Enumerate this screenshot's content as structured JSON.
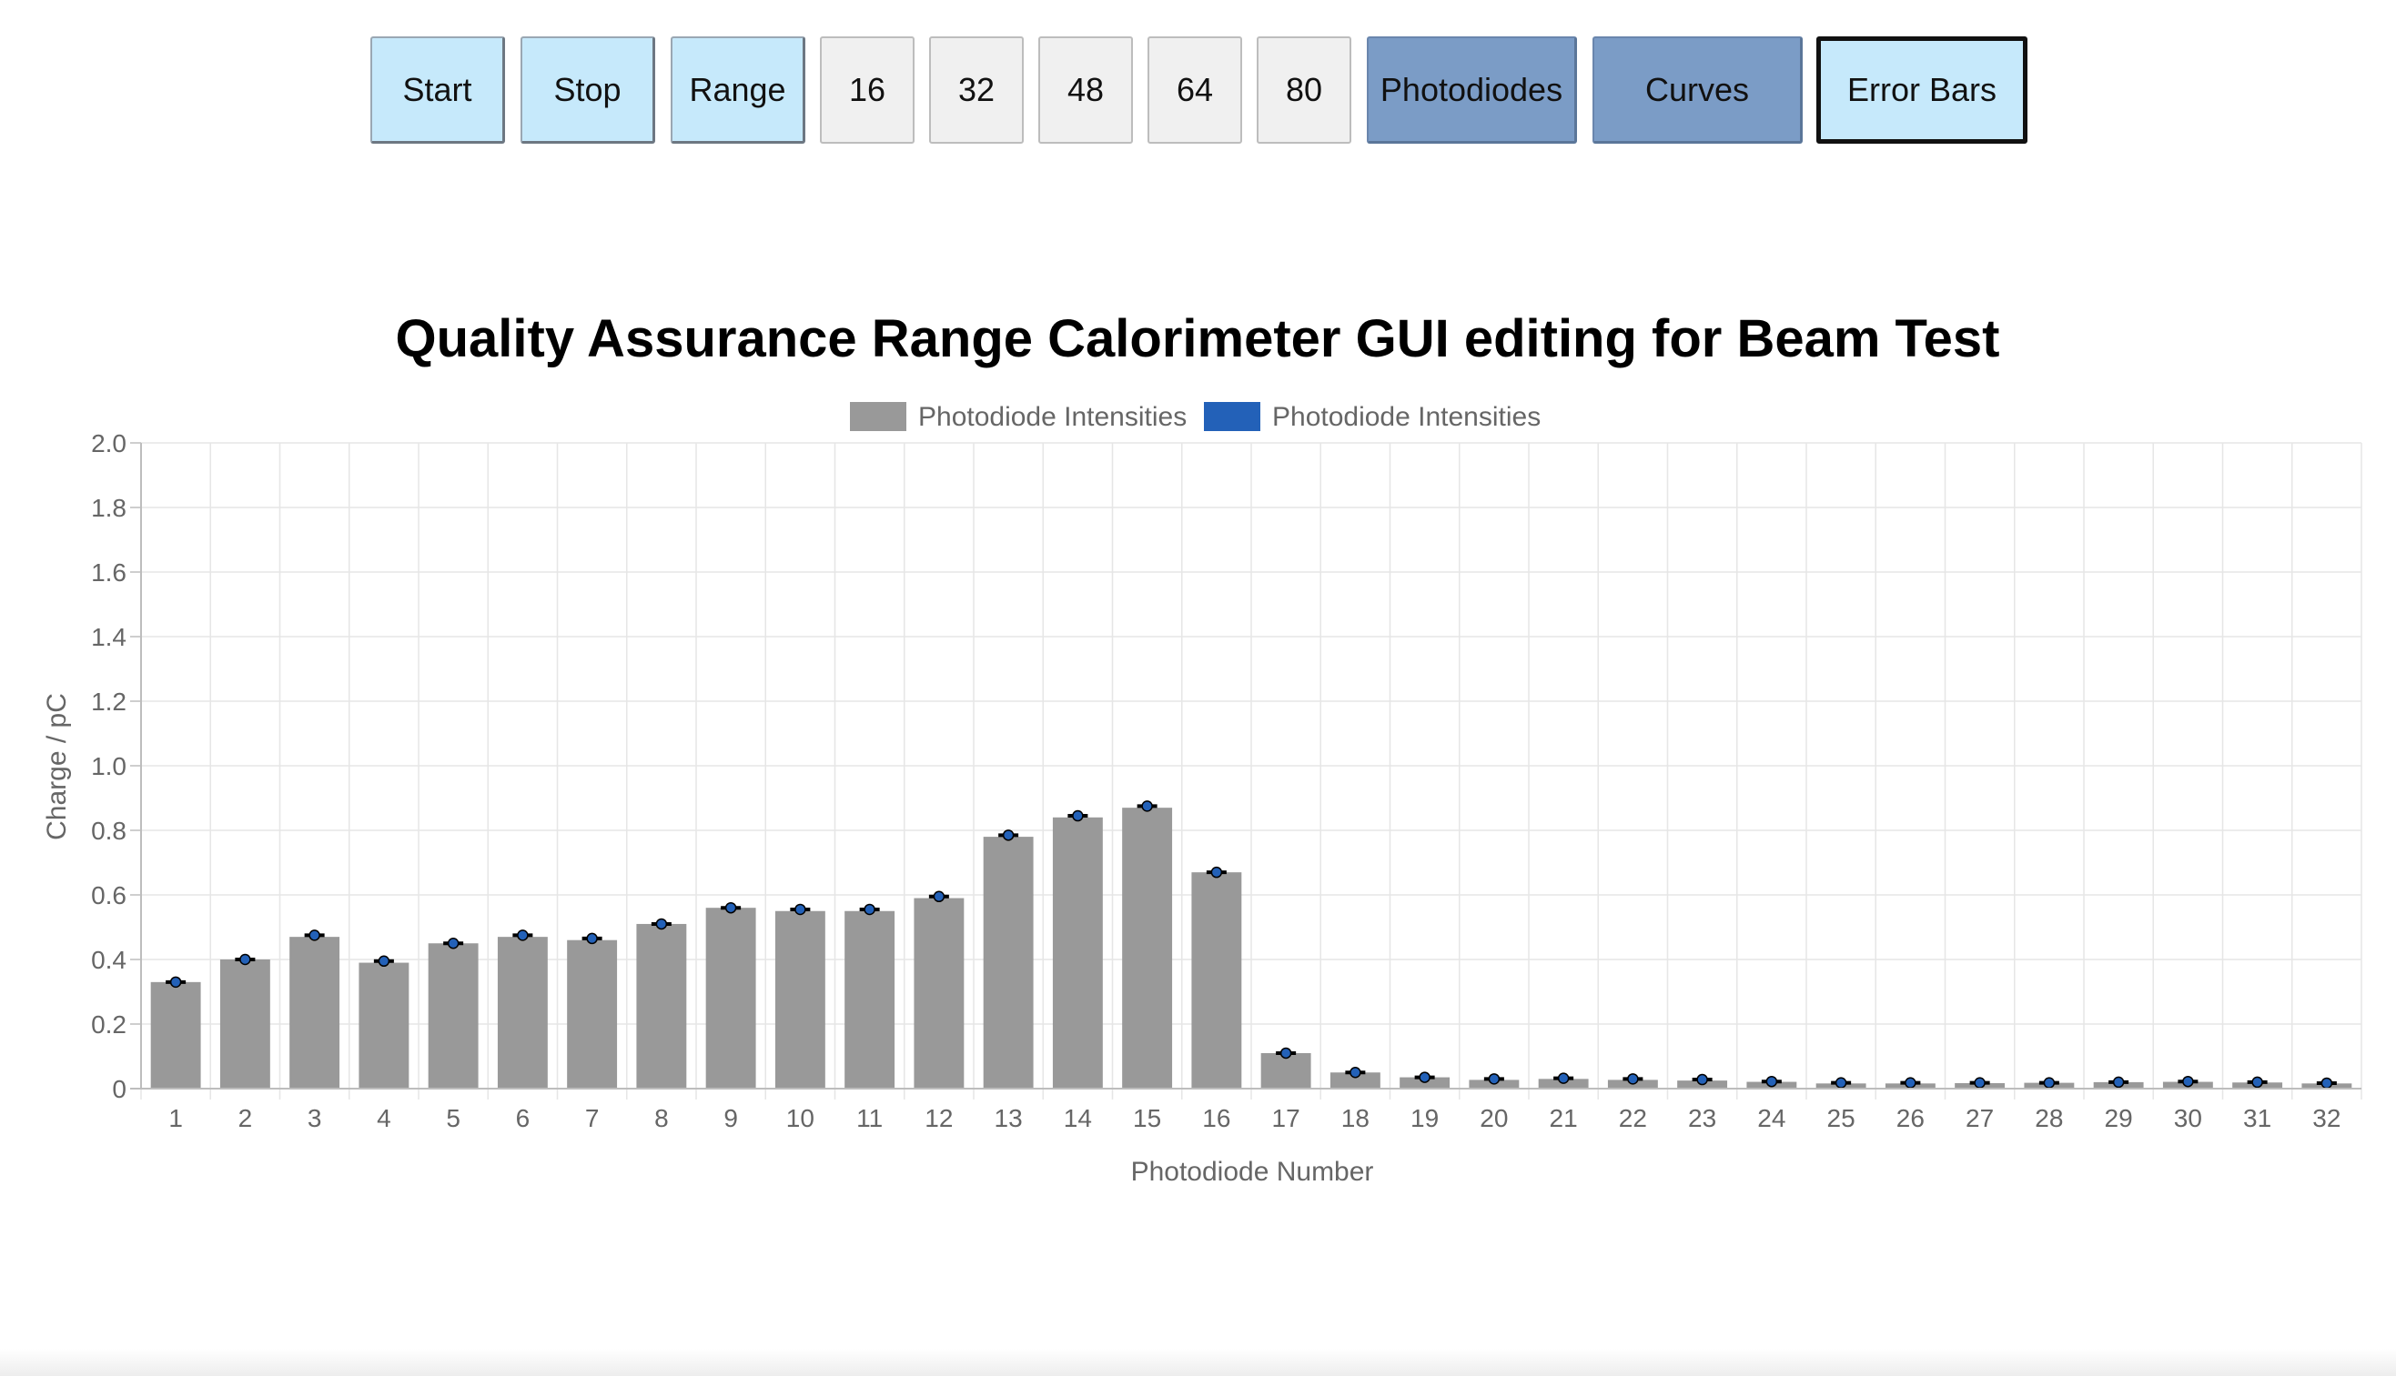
{
  "toolbar": {
    "start_label": "Start",
    "stop_label": "Stop",
    "range_label": "Range",
    "n16_label": "16",
    "n32_label": "32",
    "n48_label": "48",
    "n64_label": "64",
    "n80_label": "80",
    "photodiodes_label": "Photodiodes",
    "curves_label": "Curves",
    "errorbars_label": "Error Bars",
    "colors": {
      "light": "#c6e9fb",
      "numeric": "#f0f0f0",
      "dark": "#7b9cc6"
    }
  },
  "chart_data": {
    "type": "bar",
    "title": "Quality Assurance Range Calorimeter GUI editing for Beam Test",
    "xlabel": "Photodiode Number",
    "ylabel": "Charge / pC",
    "ylim": [
      0,
      2.0
    ],
    "yticks": [
      "0",
      "0.2",
      "0.4",
      "0.6",
      "0.8",
      "1.0",
      "1.2",
      "1.4",
      "1.6",
      "1.8",
      "2.0"
    ],
    "grid": true,
    "legend_position": "top-center",
    "categories": [
      "1",
      "2",
      "3",
      "4",
      "5",
      "6",
      "7",
      "8",
      "9",
      "10",
      "11",
      "12",
      "13",
      "14",
      "15",
      "16",
      "17",
      "18",
      "19",
      "20",
      "21",
      "22",
      "23",
      "24",
      "25",
      "26",
      "27",
      "28",
      "29",
      "30",
      "31",
      "32"
    ],
    "series": [
      {
        "name": "Photodiode Intensities",
        "style": "bar",
        "color": "#999999",
        "values": [
          0.33,
          0.4,
          0.47,
          0.39,
          0.45,
          0.47,
          0.46,
          0.51,
          0.56,
          0.55,
          0.55,
          0.59,
          0.78,
          0.84,
          0.87,
          0.67,
          0.11,
          0.05,
          0.035,
          0.027,
          0.03,
          0.027,
          0.025,
          0.021,
          0.016,
          0.016,
          0.017,
          0.018,
          0.02,
          0.021,
          0.019,
          0.016
        ]
      },
      {
        "name": "Photodiode Intensities",
        "style": "marker",
        "color": "#2361b8",
        "values": [
          0.33,
          0.4,
          0.475,
          0.395,
          0.45,
          0.475,
          0.465,
          0.51,
          0.56,
          0.555,
          0.555,
          0.595,
          0.785,
          0.845,
          0.875,
          0.67,
          0.11,
          0.05,
          0.035,
          0.03,
          0.032,
          0.03,
          0.028,
          0.022,
          0.018,
          0.018,
          0.018,
          0.018,
          0.02,
          0.022,
          0.02,
          0.017
        ]
      }
    ]
  }
}
